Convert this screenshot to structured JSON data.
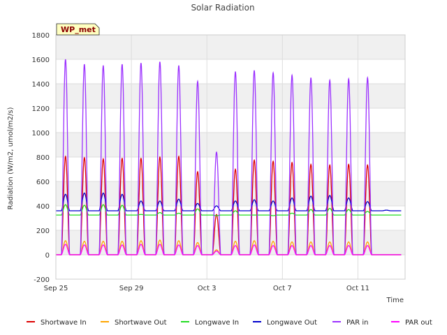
{
  "chart_data": {
    "type": "line",
    "title": "Solar Radiation",
    "xlabel": "Time",
    "ylabel": "Radiation (W/m2, umol/m2/s)",
    "site_label": "WP_met",
    "ylim": [
      -200,
      1800
    ],
    "yticks": [
      -200,
      0,
      200,
      400,
      600,
      800,
      1000,
      1200,
      1400,
      1600,
      1800
    ],
    "xlim": [
      "2023-09-25",
      "2023-10-13 12:00"
    ],
    "xticks": [
      {
        "date": "2023-09-25",
        "label": "Sep 25"
      },
      {
        "date": "2023-09-29",
        "label": "Sep 29"
      },
      {
        "date": "2023-10-03",
        "label": "Oct 3"
      },
      {
        "date": "2023-10-07",
        "label": "Oct 7"
      },
      {
        "date": "2023-10-11",
        "label": "Oct 11"
      }
    ],
    "grid": true,
    "background_bands": true,
    "legend_position": "bottom",
    "days": [
      "Sep 25",
      "Sep 26",
      "Sep 27",
      "Sep 28",
      "Sep 29",
      "Sep 30",
      "Oct 1",
      "Oct 2",
      "Oct 3",
      "Oct 4",
      "Oct 5",
      "Oct 6",
      "Oct 7",
      "Oct 8",
      "Oct 9",
      "Oct 10",
      "Oct 11",
      "Oct 12"
    ],
    "series": [
      {
        "name": "Shortwave In",
        "color": "#dd0000",
        "night": 0,
        "daily_peak": [
          805,
          795,
          785,
          790,
          790,
          800,
          805,
          680,
          330,
          700,
          775,
          765,
          755,
          740,
          735,
          740,
          735,
          0
        ]
      },
      {
        "name": "Shortwave Out",
        "color": "#ffa500",
        "night": 0,
        "daily_peak": [
          115,
          110,
          110,
          110,
          115,
          120,
          115,
          100,
          40,
          110,
          115,
          110,
          105,
          105,
          105,
          105,
          105,
          0
        ]
      },
      {
        "name": "Longwave In",
        "color": "#22dd22",
        "night": 325,
        "daily_peak": [
          410,
          405,
          410,
          405,
          330,
          345,
          340,
          375,
          320,
          360,
          325,
          320,
          340,
          370,
          380,
          370,
          355,
          325
        ]
      },
      {
        "name": "Longwave Out",
        "color": "#0000cc",
        "night": 360,
        "daily_peak": [
          495,
          505,
          505,
          495,
          440,
          440,
          455,
          420,
          400,
          440,
          450,
          440,
          465,
          480,
          485,
          465,
          435,
          365
        ]
      },
      {
        "name": "PAR in",
        "color": "#9b30ff",
        "night": 0,
        "daily_peak": [
          1600,
          1560,
          1550,
          1560,
          1570,
          1580,
          1550,
          1420,
          840,
          1500,
          1510,
          1490,
          1470,
          1450,
          1430,
          1440,
          1450,
          0
        ]
      },
      {
        "name": "PAR out",
        "color": "#ff00ff",
        "night": 0,
        "daily_peak": [
          85,
          80,
          80,
          80,
          85,
          85,
          80,
          75,
          30,
          75,
          80,
          75,
          75,
          75,
          75,
          75,
          75,
          0
        ]
      }
    ]
  }
}
